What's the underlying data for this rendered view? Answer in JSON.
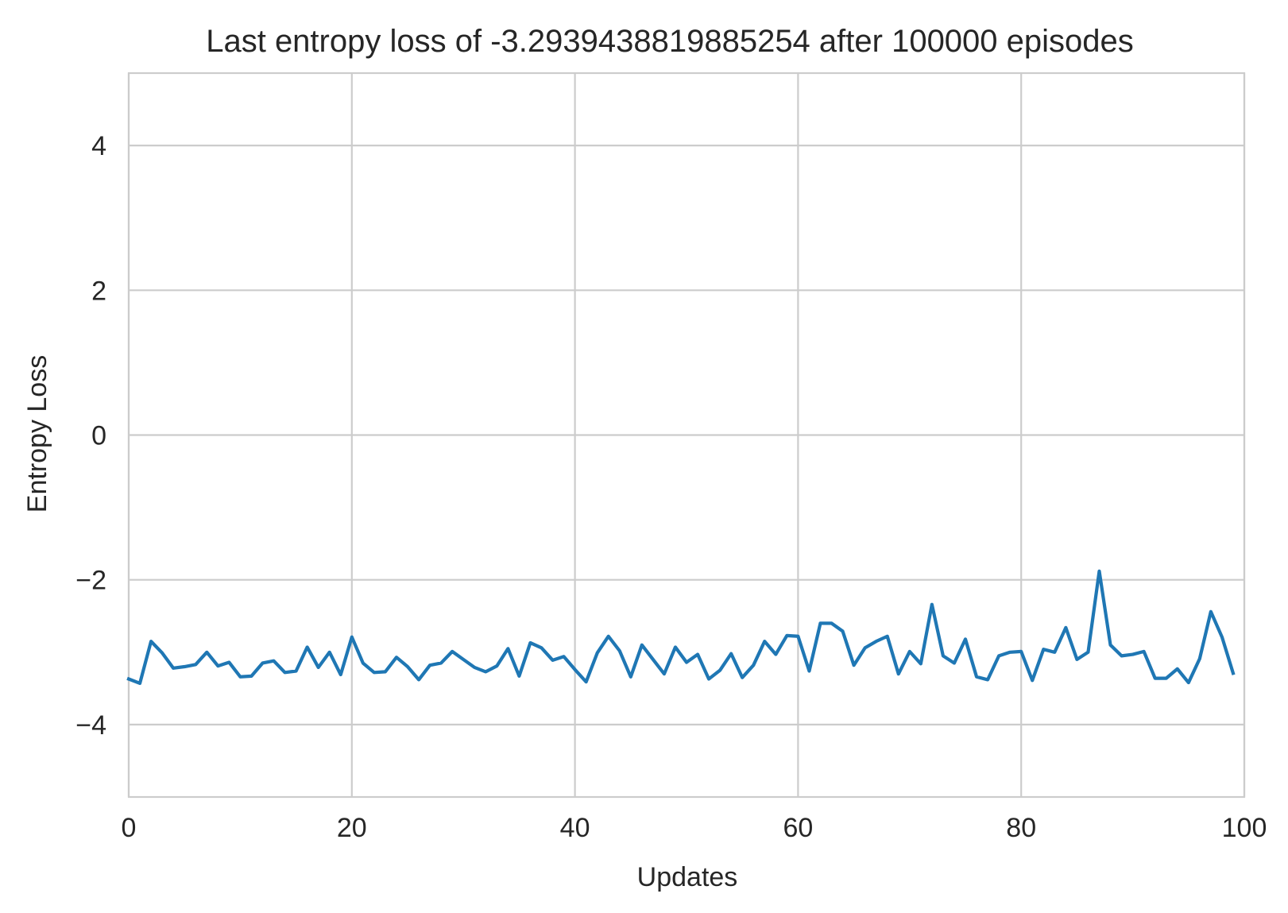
{
  "chart_data": {
    "type": "line",
    "title": "Last entropy loss of -3.2939438819885254 after 100000 episodes",
    "xlabel": "Updates",
    "ylabel": "Entropy Loss",
    "xlim": [
      0,
      100
    ],
    "ylim": [
      -5,
      5
    ],
    "x_ticks": [
      0,
      20,
      40,
      60,
      80,
      100
    ],
    "y_ticks": [
      -4,
      -2,
      0,
      2,
      4
    ],
    "x_tick_labels": [
      "0",
      "20",
      "40",
      "60",
      "80",
      "100"
    ],
    "y_tick_labels": [
      "−4",
      "−2",
      "0",
      "2",
      "4"
    ],
    "grid": true,
    "legend": "none",
    "colors": {
      "line": "#1f77b4",
      "grid": "#cccccc",
      "text": "#262626",
      "background": "#ffffff"
    },
    "series": [
      {
        "values": [
          -3.37,
          -3.43,
          -2.85,
          -3.01,
          -3.22,
          -3.2,
          -3.17,
          -3.0,
          -3.19,
          -3.14,
          -3.34,
          -3.33,
          -3.15,
          -3.12,
          -3.28,
          -3.26,
          -2.93,
          -3.21,
          -3.0,
          -3.31,
          -2.79,
          -3.15,
          -3.28,
          -3.27,
          -3.07,
          -3.2,
          -3.38,
          -3.18,
          -3.15,
          -2.99,
          -3.1,
          -3.21,
          -3.27,
          -3.19,
          -2.95,
          -3.33,
          -2.87,
          -2.94,
          -3.11,
          -3.06,
          -3.24,
          -3.41,
          -3.01,
          -2.78,
          -2.98,
          -3.34,
          -2.9,
          -3.1,
          -3.3,
          -2.93,
          -3.14,
          -3.03,
          -3.37,
          -3.25,
          -3.02,
          -3.35,
          -3.18,
          -2.85,
          -3.03,
          -2.77,
          -2.78,
          -3.26,
          -2.6,
          -2.6,
          -2.71,
          -3.18,
          -2.94,
          -2.85,
          -2.78,
          -3.3,
          -2.99,
          -3.16,
          -2.34,
          -3.05,
          -3.15,
          -2.82,
          -3.34,
          -3.38,
          -3.05,
          -3.0,
          -2.99,
          -3.39,
          -2.96,
          -3.0,
          -2.66,
          -3.1,
          -3.0,
          -1.88,
          -2.9,
          -3.05,
          -3.03,
          -2.99,
          -3.36,
          -3.36,
          -3.23,
          -3.42,
          -3.09,
          -2.44,
          -2.79,
          -3.29
        ]
      }
    ]
  }
}
